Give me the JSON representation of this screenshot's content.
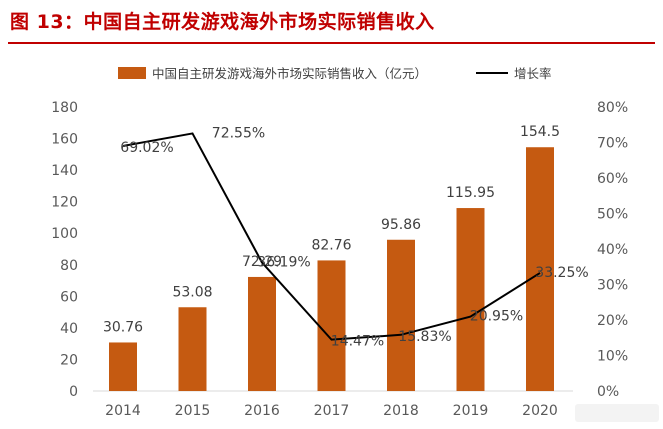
{
  "figure": {
    "number": "图 13：",
    "title": "中国自主研发游戏海外市场实际销售收入"
  },
  "chart_data": {
    "type": "bar",
    "categories": [
      "2014",
      "2015",
      "2016",
      "2017",
      "2018",
      "2019",
      "2020"
    ],
    "series": [
      {
        "name": "中国自主研发游戏海外市场实际销售收入（亿元）",
        "type": "bar",
        "axis": "left",
        "color": "#c55a11",
        "values": [
          30.76,
          53.08,
          72.29,
          82.76,
          95.86,
          115.95,
          154.5
        ],
        "labels": [
          "30.76",
          "53.08",
          "72.29",
          "82.76",
          "95.86",
          "115.95",
          "154.5"
        ]
      },
      {
        "name": "增长率",
        "type": "line",
        "axis": "right",
        "color": "#000000",
        "values": [
          69.02,
          72.55,
          36.19,
          14.47,
          15.83,
          20.95,
          33.25
        ],
        "labels": [
          "69.02%",
          "72.55%",
          "36.19%",
          "14.47%",
          "15.83%",
          "20.95%",
          "33.25%"
        ]
      }
    ],
    "y_left": {
      "min": 0,
      "max": 180,
      "ticks": [
        "0",
        "20",
        "40",
        "60",
        "80",
        "100",
        "120",
        "140",
        "160",
        "180"
      ]
    },
    "y_right": {
      "min": 0,
      "max": 80,
      "ticks": [
        "0%",
        "10%",
        "20%",
        "30%",
        "40%",
        "50%",
        "60%",
        "70%",
        "80%"
      ]
    },
    "grid": false,
    "legend": "top"
  }
}
